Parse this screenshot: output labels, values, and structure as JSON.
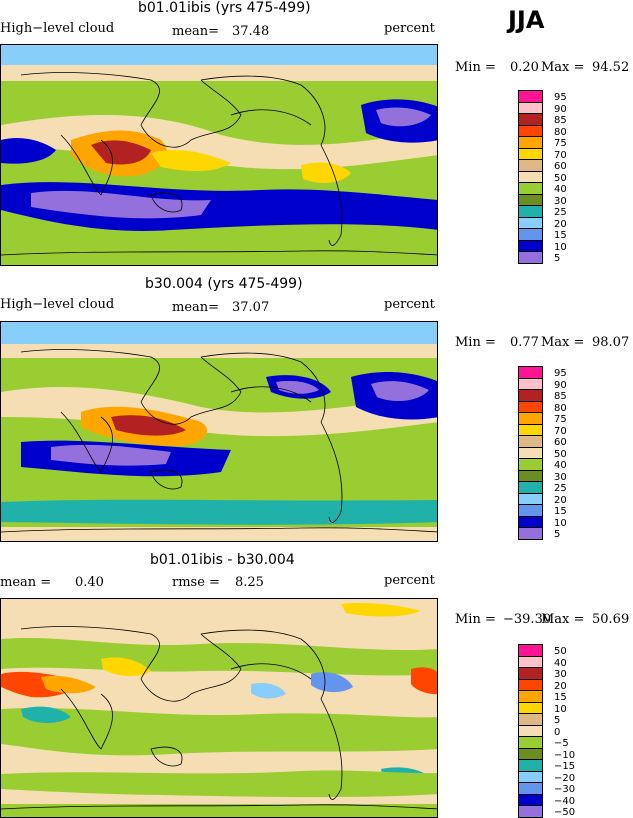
{
  "season": "JJA",
  "panels": [
    {
      "title": "b01.01ibis (yrs 475-499)",
      "left_label": "High−level cloud",
      "stat_label": "mean=",
      "stat_value": "37.48",
      "units": "percent",
      "min_label": "Min =",
      "min_value": "0.20",
      "max_label": "Max =",
      "max_value": "94.52",
      "legend": [
        "95",
        "90",
        "85",
        "80",
        "75",
        "70",
        "60",
        "50",
        "40",
        "30",
        "25",
        "20",
        "15",
        "10",
        "5"
      ],
      "palette": [
        "#ff1493",
        "#ffc0cb",
        "#b22222",
        "#ff4500",
        "#ffa500",
        "#ffd700",
        "#deb887",
        "#f5deb3",
        "#9acd32",
        "#6b8e23",
        "#20b2aa",
        "#87cefa",
        "#6495ed",
        "#0000cd",
        "#9370db"
      ]
    },
    {
      "title": "b30.004 (yrs 475-499)",
      "left_label": "High−level cloud",
      "stat_label": "mean=",
      "stat_value": "37.07",
      "units": "percent",
      "min_label": "Min =",
      "min_value": "0.77",
      "max_label": "Max =",
      "max_value": "98.07",
      "legend": [
        "95",
        "90",
        "85",
        "80",
        "75",
        "70",
        "60",
        "50",
        "40",
        "30",
        "25",
        "20",
        "15",
        "10",
        "5"
      ],
      "palette": [
        "#ff1493",
        "#ffc0cb",
        "#b22222",
        "#ff4500",
        "#ffa500",
        "#ffd700",
        "#deb887",
        "#f5deb3",
        "#9acd32",
        "#6b8e23",
        "#20b2aa",
        "#87cefa",
        "#6495ed",
        "#0000cd",
        "#9370db"
      ]
    },
    {
      "title": "b01.01ibis - b30.004",
      "left_label": "mean =",
      "left_value": "0.40",
      "stat_label": "rmse =",
      "stat_value": "8.25",
      "units": "percent",
      "min_label": "Min =",
      "min_value": "−39.30",
      "max_label": "Max =",
      "max_value": "50.69",
      "legend": [
        "50",
        "40",
        "30",
        "20",
        "15",
        "10",
        "5",
        "0",
        "−5",
        "−10",
        "−15",
        "−20",
        "−30",
        "−40",
        "−50"
      ],
      "palette": [
        "#ff1493",
        "#ffc0cb",
        "#b22222",
        "#ff4500",
        "#ffa500",
        "#ffd700",
        "#deb887",
        "#f5deb3",
        "#9acd32",
        "#6b8e23",
        "#20b2aa",
        "#87cefa",
        "#6495ed",
        "#0000cd",
        "#9370db"
      ]
    }
  ]
}
